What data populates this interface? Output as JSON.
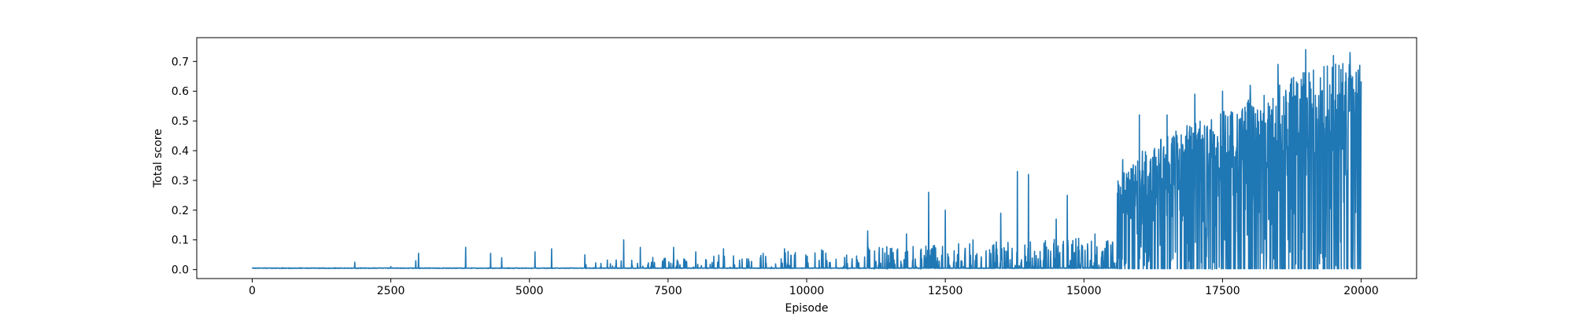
{
  "chart_data": {
    "type": "line",
    "title": "",
    "xlabel": "Episode",
    "ylabel": "Total score",
    "xlim": [
      -1000,
      21000
    ],
    "ylim": [
      -0.03,
      0.78
    ],
    "x_ticks": [
      0,
      2500,
      5000,
      7500,
      10000,
      12500,
      15000,
      17500,
      20000
    ],
    "x_tick_labels": [
      "0",
      "2500",
      "5000",
      "7500",
      "10000",
      "12500",
      "15000",
      "17500",
      "20000"
    ],
    "y_ticks": [
      0.0,
      0.1,
      0.2,
      0.3,
      0.4,
      0.5,
      0.6,
      0.7
    ],
    "y_tick_labels": [
      "0.0",
      "0.1",
      "0.2",
      "0.3",
      "0.4",
      "0.5",
      "0.6",
      "0.7"
    ],
    "grid": false,
    "legend": "none",
    "series": [
      {
        "color": "#1f77b4",
        "x_start": 0,
        "x_end": 20000,
        "baseline": 0.0,
        "spikes": [
          [
            1850,
            0.025
          ],
          [
            2500,
            0.01
          ],
          [
            2950,
            0.03
          ],
          [
            3000,
            0.055
          ],
          [
            3850,
            0.075
          ],
          [
            4300,
            0.055
          ],
          [
            4500,
            0.04
          ],
          [
            5100,
            0.06
          ],
          [
            5400,
            0.07
          ],
          [
            6000,
            0.05
          ],
          [
            6700,
            0.1
          ],
          [
            7000,
            0.075
          ],
          [
            7600,
            0.075
          ],
          [
            8000,
            0.06
          ],
          [
            8500,
            0.07
          ],
          [
            9600,
            0.07
          ],
          [
            11100,
            0.13
          ],
          [
            11800,
            0.12
          ],
          [
            12200,
            0.26
          ],
          [
            12500,
            0.2
          ],
          [
            13000,
            0.1
          ],
          [
            13500,
            0.19
          ],
          [
            13800,
            0.33
          ],
          [
            14000,
            0.32
          ],
          [
            14500,
            0.17
          ],
          [
            14700,
            0.25
          ],
          [
            15200,
            0.12
          ],
          [
            15700,
            0.37
          ],
          [
            16000,
            0.52
          ],
          [
            16500,
            0.52
          ],
          [
            17000,
            0.59
          ],
          [
            17500,
            0.6
          ],
          [
            18000,
            0.62
          ],
          [
            18500,
            0.69
          ],
          [
            19000,
            0.74
          ],
          [
            19500,
            0.72
          ],
          [
            19800,
            0.73
          ]
        ],
        "envelope": [
          [
            15600,
            0.3
          ],
          [
            16000,
            0.4
          ],
          [
            16500,
            0.45
          ],
          [
            17000,
            0.5
          ],
          [
            17500,
            0.53
          ],
          [
            18000,
            0.58
          ],
          [
            18500,
            0.62
          ],
          [
            19000,
            0.67
          ],
          [
            19500,
            0.69
          ],
          [
            20000,
            0.7
          ]
        ]
      }
    ]
  }
}
